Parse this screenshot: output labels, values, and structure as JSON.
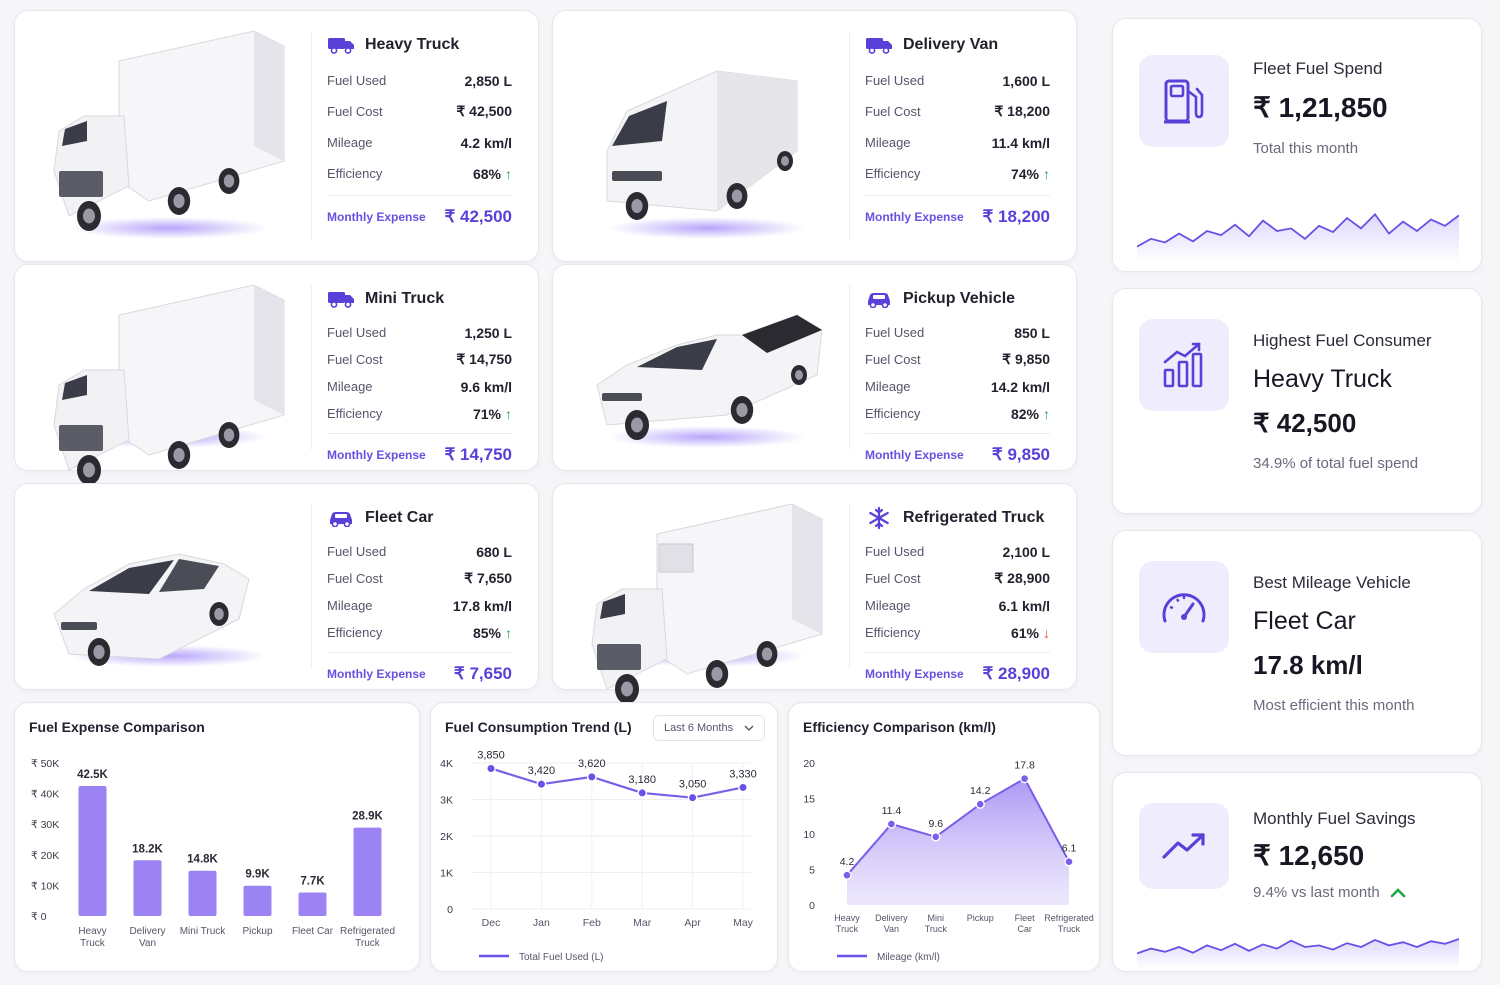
{
  "colors": {
    "accent": "#6b4fe6",
    "accent_light": "#a48cf6",
    "positive": "#1fa84a",
    "negative": "#e5483b"
  },
  "vehicles": [
    {
      "name": "Heavy Truck",
      "icon": "truck-icon",
      "fuel_used_label": "Fuel Used",
      "fuel_used": "2,850 L",
      "fuel_cost_label": "Fuel Cost",
      "fuel_cost": "₹ 42,500",
      "mileage_label": "Mileage",
      "mileage": "4.2 km/l",
      "efficiency_label": "Efficiency",
      "efficiency": "68%",
      "trend": "up",
      "monthly_label": "Monthly Expense",
      "monthly": "₹ 42,500",
      "image": "heavy-truck"
    },
    {
      "name": "Delivery Van",
      "icon": "truck-icon",
      "fuel_used_label": "Fuel Used",
      "fuel_used": "1,600 L",
      "fuel_cost_label": "Fuel Cost",
      "fuel_cost": "₹ 18,200",
      "mileage_label": "Mileage",
      "mileage": "11.4 km/l",
      "efficiency_label": "Efficiency",
      "efficiency": "74%",
      "trend": "up",
      "monthly_label": "Monthly Expense",
      "monthly": "₹ 18,200",
      "image": "delivery-van"
    },
    {
      "name": "Mini Truck",
      "icon": "truck-icon",
      "fuel_used_label": "Fuel Used",
      "fuel_used": "1,250 L",
      "fuel_cost_label": "Fuel Cost",
      "fuel_cost": "₹ 14,750",
      "mileage_label": "Mileage",
      "mileage": "9.6 km/l",
      "efficiency_label": "Efficiency",
      "efficiency": "71%",
      "trend": "up",
      "monthly_label": "Monthly Expense",
      "monthly": "₹ 14,750",
      "image": "mini-truck"
    },
    {
      "name": "Pickup Vehicle",
      "icon": "car-icon",
      "fuel_used_label": "Fuel Used",
      "fuel_used": "850 L",
      "fuel_cost_label": "Fuel Cost",
      "fuel_cost": "₹ 9,850",
      "mileage_label": "Mileage",
      "mileage": "14.2 km/l",
      "efficiency_label": "Efficiency",
      "efficiency": "82%",
      "trend": "up",
      "monthly_label": "Monthly Expense",
      "monthly": "₹ 9,850",
      "image": "pickup"
    },
    {
      "name": "Fleet Car",
      "icon": "car-icon",
      "fuel_used_label": "Fuel Used",
      "fuel_used": "680 L",
      "fuel_cost_label": "Fuel Cost",
      "fuel_cost": "₹ 7,650",
      "mileage_label": "Mileage",
      "mileage": "17.8 km/l",
      "efficiency_label": "Efficiency",
      "efficiency": "85%",
      "trend": "up",
      "monthly_label": "Monthly Expense",
      "monthly": "₹ 7,650",
      "image": "fleet-car"
    },
    {
      "name": "Refrigerated Truck",
      "icon": "snowflake-icon",
      "fuel_used_label": "Fuel Used",
      "fuel_used": "2,100 L",
      "fuel_cost_label": "Fuel Cost",
      "fuel_cost": "₹ 28,900",
      "mileage_label": "Mileage",
      "mileage": "6.1 km/l",
      "efficiency_label": "Efficiency",
      "efficiency": "61%",
      "trend": "down",
      "monthly_label": "Monthly Expense",
      "monthly": "₹ 28,900",
      "image": "refrigerated-truck"
    }
  ],
  "stats": {
    "fuel_spend": {
      "icon": "fuel-pump-icon",
      "label": "Fleet Fuel Spend",
      "value": "₹ 1,21,850",
      "sub": "Total this month"
    },
    "highest": {
      "icon": "bar-chart-icon",
      "label": "Highest Fuel Consumer",
      "name": "Heavy Truck",
      "value": "₹ 42,500",
      "sub": "34.9% of total fuel spend"
    },
    "best": {
      "icon": "speedometer-icon",
      "label": "Best Mileage Vehicle",
      "name": "Fleet Car",
      "value": "17.8 km/l",
      "sub": "Most efficient this month"
    },
    "savings": {
      "icon": "trend-up-icon",
      "label": "Monthly Fuel Savings",
      "value": "₹ 12,650",
      "sub": "9.4% vs last month",
      "trend": "up"
    }
  },
  "trend_dropdown": "Last 6 Months",
  "chart_data": [
    {
      "type": "bar",
      "title": "Fuel Expense Comparison",
      "categories": [
        "Heavy Truck",
        "Delivery Van",
        "Mini Truck",
        "Pickup",
        "Fleet Car",
        "Refrigerated Truck"
      ],
      "values": [
        42.5,
        18.2,
        14.8,
        9.9,
        7.7,
        28.9
      ],
      "data_labels": [
        "42.5K",
        "18.2K",
        "14.8K",
        "9.9K",
        "7.7K",
        "28.9K"
      ],
      "y_ticks": [
        "₹ 0",
        "₹ 10K",
        "₹ 20K",
        "₹ 30K",
        "₹ 40K",
        "₹ 50K"
      ],
      "ylim": [
        0,
        50
      ]
    },
    {
      "type": "line",
      "title": "Fuel Consumption Trend (L)",
      "categories": [
        "Dec",
        "Jan",
        "Feb",
        "Mar",
        "Apr",
        "May"
      ],
      "series": [
        {
          "name": "Total Fuel Used (L)",
          "values": [
            3850,
            3420,
            3620,
            3180,
            3050,
            3330
          ]
        }
      ],
      "data_labels": [
        "3,850",
        "3,420",
        "3,620",
        "3,180",
        "3,050",
        "3,330"
      ],
      "y_ticks": [
        "0",
        "1K",
        "2K",
        "3K",
        "4K"
      ],
      "ylim": [
        0,
        4000
      ]
    },
    {
      "type": "area",
      "title": "Efficiency Comparison (km/l)",
      "categories": [
        "Heavy Truck",
        "Delivery Van",
        "Mini Truck",
        "Pickup",
        "Fleet Car",
        "Refrigerated Truck"
      ],
      "series": [
        {
          "name": "Mileage (km/l)",
          "values": [
            4.2,
            11.4,
            9.6,
            14.2,
            17.8,
            6.1
          ]
        }
      ],
      "data_labels": [
        "4.2",
        "11.4",
        "9.6",
        "14.2",
        "17.8",
        "6.1"
      ],
      "y_ticks": [
        "0",
        "5",
        "10",
        "15",
        "20"
      ],
      "ylim": [
        0,
        20
      ]
    }
  ],
  "sparklines": {
    "fuel_spend": [
      0.2,
      0.35,
      0.28,
      0.45,
      0.3,
      0.5,
      0.42,
      0.62,
      0.4,
      0.7,
      0.5,
      0.55,
      0.35,
      0.6,
      0.48,
      0.75,
      0.55,
      0.82,
      0.45,
      0.68,
      0.5,
      0.72,
      0.6,
      0.8
    ],
    "savings": [
      0.3,
      0.45,
      0.35,
      0.5,
      0.32,
      0.55,
      0.4,
      0.6,
      0.38,
      0.58,
      0.45,
      0.7,
      0.5,
      0.55,
      0.42,
      0.62,
      0.5,
      0.72,
      0.55,
      0.65,
      0.5,
      0.68,
      0.6,
      0.75
    ]
  }
}
